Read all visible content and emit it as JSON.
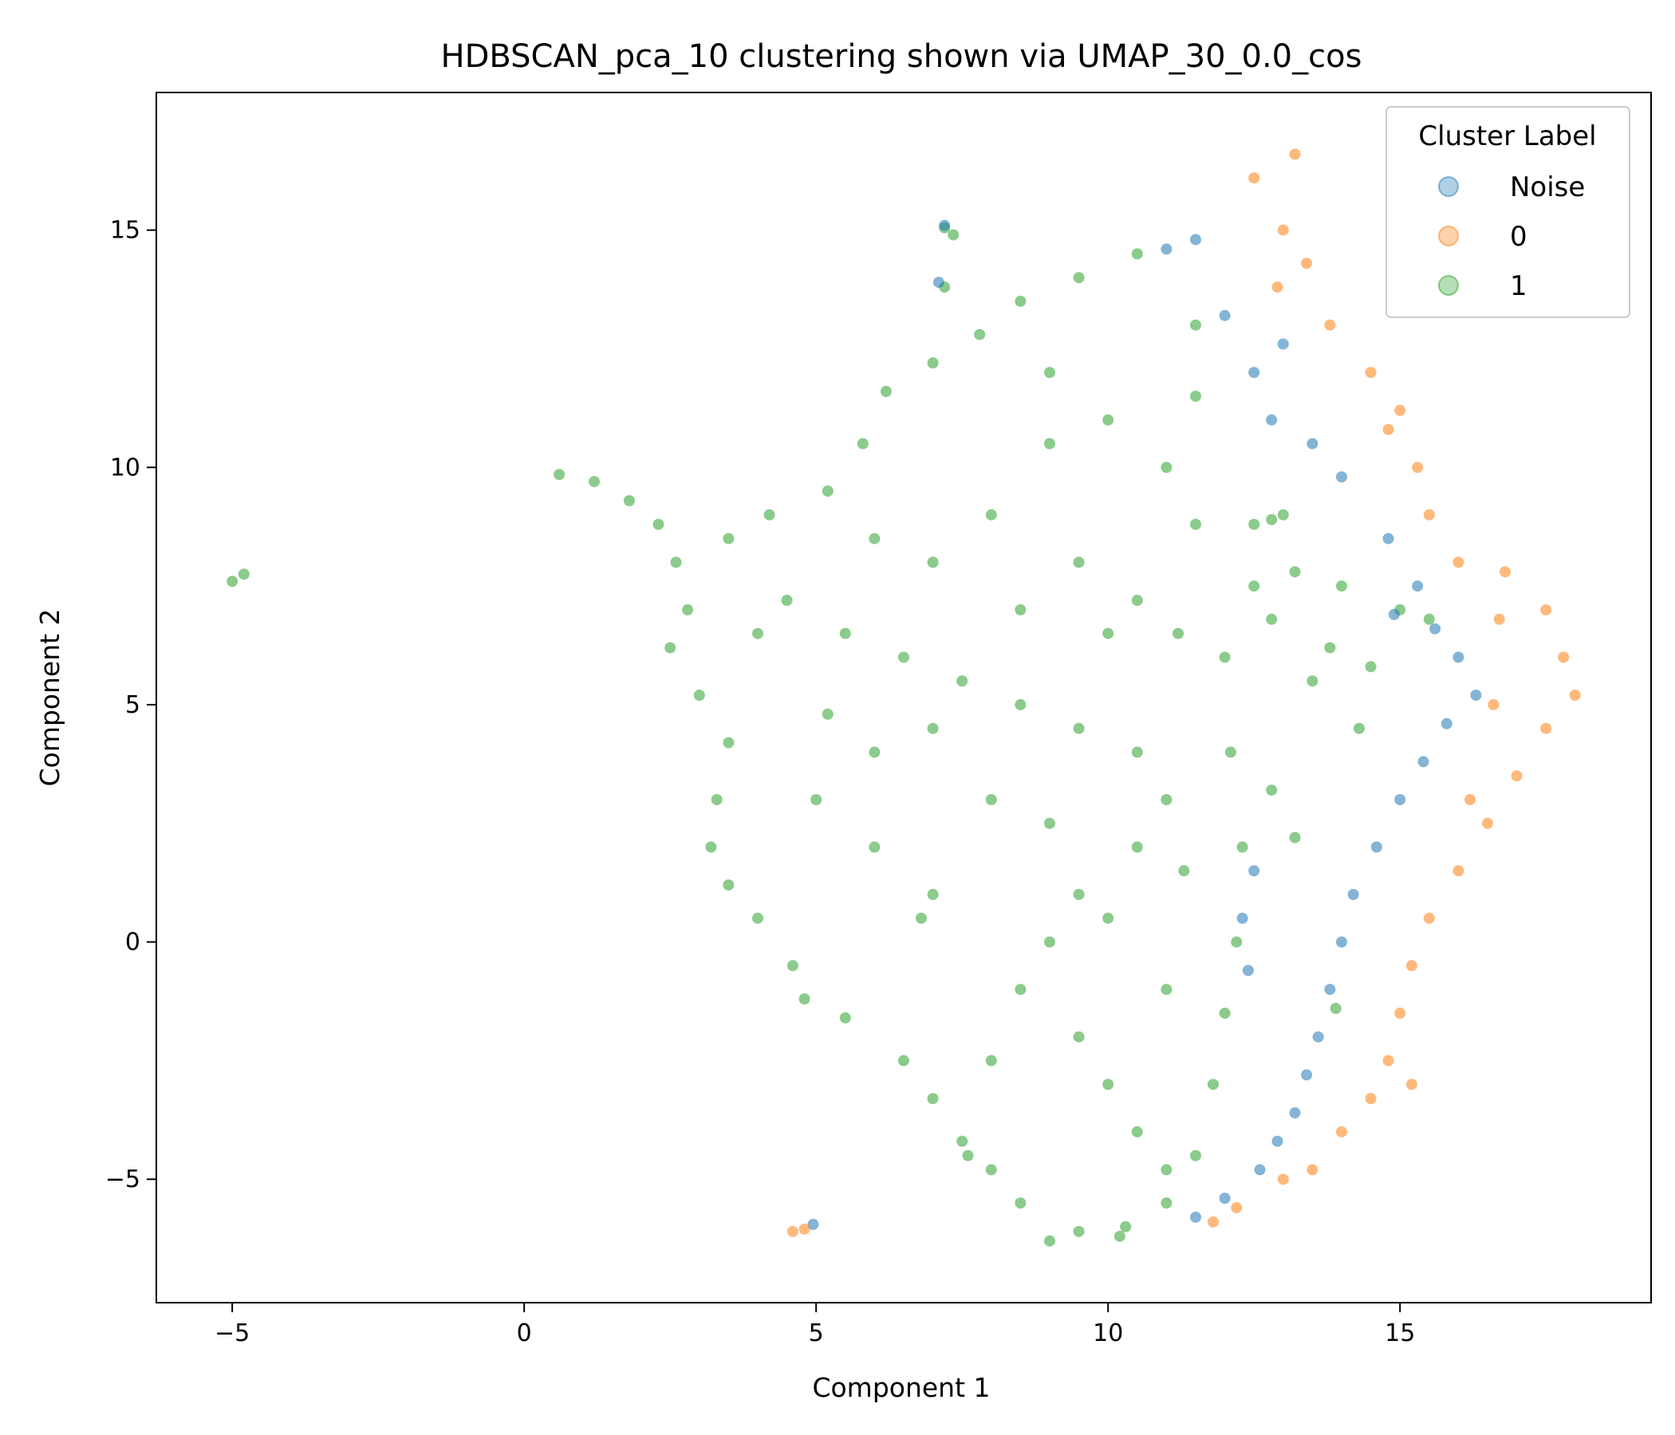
{
  "chart_data": {
    "type": "scatter",
    "title": "HDBSCAN_pca_10 clustering shown via UMAP_30_0.0_cos",
    "xlabel": "Component 1",
    "ylabel": "Component 2",
    "xlim": [
      -6.3,
      19.3
    ],
    "ylim": [
      -7.6,
      17.9
    ],
    "xticks": [
      -5,
      0,
      5,
      10,
      15
    ],
    "yticks": [
      -5,
      0,
      5,
      10,
      15
    ],
    "xtick_labels": [
      "−5",
      "0",
      "5",
      "10",
      "15"
    ],
    "ytick_labels": [
      "−5",
      "0",
      "5",
      "10",
      "15"
    ],
    "grid": false,
    "legend": {
      "title": "Cluster Label",
      "placement": "top-right"
    },
    "series": [
      {
        "name": "Noise",
        "color": "#1f77b4",
        "points": [
          [
            11.5,
            14.8
          ],
          [
            12.0,
            13.2
          ],
          [
            12.5,
            12.0
          ],
          [
            12.8,
            11.0
          ],
          [
            13.5,
            10.5
          ],
          [
            14.0,
            9.8
          ],
          [
            14.8,
            8.5
          ],
          [
            15.3,
            7.5
          ],
          [
            15.6,
            6.6
          ],
          [
            16.0,
            6.0
          ],
          [
            16.3,
            5.2
          ],
          [
            15.8,
            4.6
          ],
          [
            15.4,
            3.8
          ],
          [
            15.0,
            3.0
          ],
          [
            14.6,
            2.0
          ],
          [
            14.2,
            1.0
          ],
          [
            14.0,
            0.0
          ],
          [
            13.8,
            -1.0
          ],
          [
            13.6,
            -2.0
          ],
          [
            13.4,
            -2.8
          ],
          [
            13.2,
            -3.6
          ],
          [
            12.9,
            -4.2
          ],
          [
            12.6,
            -4.8
          ],
          [
            12.0,
            -5.4
          ],
          [
            11.5,
            -5.8
          ],
          [
            12.5,
            1.5
          ],
          [
            12.3,
            0.5
          ],
          [
            12.4,
            -0.6
          ],
          [
            4.95,
            -5.95
          ],
          [
            7.1,
            13.9
          ],
          [
            7.2,
            15.1
          ],
          [
            11.0,
            14.6
          ],
          [
            13.0,
            12.6
          ],
          [
            14.9,
            6.9
          ]
        ]
      },
      {
        "name": "0",
        "color": "#ff7f0e",
        "points": [
          [
            13.2,
            16.6
          ],
          [
            12.5,
            16.1
          ],
          [
            13.0,
            15.0
          ],
          [
            13.4,
            14.3
          ],
          [
            13.8,
            13.0
          ],
          [
            14.5,
            12.0
          ],
          [
            15.0,
            11.2
          ],
          [
            15.3,
            10.0
          ],
          [
            15.5,
            9.0
          ],
          [
            16.0,
            8.0
          ],
          [
            16.8,
            7.8
          ],
          [
            17.5,
            7.0
          ],
          [
            17.8,
            6.0
          ],
          [
            18.0,
            5.2
          ],
          [
            17.5,
            4.5
          ],
          [
            17.0,
            3.5
          ],
          [
            16.5,
            2.5
          ],
          [
            16.0,
            1.5
          ],
          [
            15.5,
            0.5
          ],
          [
            15.2,
            -0.5
          ],
          [
            15.0,
            -1.5
          ],
          [
            14.8,
            -2.5
          ],
          [
            14.5,
            -3.3
          ],
          [
            14.0,
            -4.0
          ],
          [
            13.5,
            -4.8
          ],
          [
            13.0,
            -5.0
          ],
          [
            12.2,
            -5.6
          ],
          [
            11.8,
            -5.9
          ],
          [
            4.6,
            -6.1
          ],
          [
            4.8,
            -6.05
          ],
          [
            16.6,
            5.0
          ],
          [
            16.2,
            3.0
          ],
          [
            16.7,
            6.8
          ],
          [
            12.9,
            13.8
          ],
          [
            14.8,
            10.8
          ],
          [
            15.2,
            -3.0
          ]
        ]
      },
      {
        "name": "1",
        "color": "#2ca02c",
        "points": [
          [
            0.6,
            9.85
          ],
          [
            1.2,
            9.7
          ],
          [
            1.8,
            9.3
          ],
          [
            2.3,
            8.8
          ],
          [
            2.6,
            8.0
          ],
          [
            2.8,
            7.0
          ],
          [
            2.5,
            6.2
          ],
          [
            3.0,
            5.2
          ],
          [
            3.5,
            4.2
          ],
          [
            3.3,
            3.0
          ],
          [
            3.2,
            2.0
          ],
          [
            3.5,
            1.2
          ],
          [
            4.0,
            0.5
          ],
          [
            4.6,
            -0.5
          ],
          [
            4.8,
            -1.2
          ],
          [
            5.5,
            -1.6
          ],
          [
            6.5,
            -2.5
          ],
          [
            7.0,
            -3.3
          ],
          [
            7.5,
            -4.2
          ],
          [
            8.0,
            -4.8
          ],
          [
            8.5,
            -5.5
          ],
          [
            9.0,
            -6.3
          ],
          [
            9.5,
            -6.1
          ],
          [
            10.3,
            -6.0
          ],
          [
            11.0,
            -5.5
          ],
          [
            11.5,
            -4.5
          ],
          [
            11.8,
            -3.0
          ],
          [
            12.0,
            -1.5
          ],
          [
            12.2,
            0.0
          ],
          [
            12.3,
            2.0
          ],
          [
            12.1,
            4.0
          ],
          [
            12.0,
            6.0
          ],
          [
            12.5,
            7.5
          ],
          [
            13.2,
            7.8
          ],
          [
            14.0,
            7.5
          ],
          [
            15.0,
            7.0
          ],
          [
            15.5,
            6.8
          ],
          [
            13.5,
            5.5
          ],
          [
            14.3,
            4.5
          ],
          [
            12.5,
            8.8
          ],
          [
            13.0,
            9.0
          ],
          [
            10.5,
            14.5
          ],
          [
            9.5,
            14.0
          ],
          [
            8.5,
            13.5
          ],
          [
            7.8,
            12.8
          ],
          [
            7.0,
            12.2
          ],
          [
            6.2,
            11.6
          ],
          [
            5.8,
            10.5
          ],
          [
            5.2,
            9.5
          ],
          [
            4.2,
            9.0
          ],
          [
            3.5,
            8.5
          ],
          [
            4.5,
            7.2
          ],
          [
            5.5,
            6.5
          ],
          [
            6.5,
            6.0
          ],
          [
            7.5,
            5.5
          ],
          [
            8.5,
            5.0
          ],
          [
            9.5,
            4.5
          ],
          [
            10.5,
            4.0
          ],
          [
            11.0,
            3.0
          ],
          [
            10.5,
            2.0
          ],
          [
            9.5,
            1.0
          ],
          [
            9.0,
            0.0
          ],
          [
            8.5,
            -1.0
          ],
          [
            9.5,
            -2.0
          ],
          [
            10.0,
            -3.0
          ],
          [
            10.5,
            -4.0
          ],
          [
            11.0,
            -4.8
          ],
          [
            9.0,
            12.0
          ],
          [
            10.0,
            11.0
          ],
          [
            11.0,
            10.0
          ],
          [
            11.5,
            11.5
          ],
          [
            11.5,
            13.0
          ],
          [
            9.0,
            10.5
          ],
          [
            8.0,
            9.0
          ],
          [
            7.0,
            8.0
          ],
          [
            9.5,
            8.0
          ],
          [
            10.5,
            7.2
          ],
          [
            11.2,
            6.5
          ],
          [
            6.0,
            4.0
          ],
          [
            5.0,
            3.0
          ],
          [
            6.0,
            2.0
          ],
          [
            7.0,
            1.0
          ],
          [
            8.0,
            3.0
          ],
          [
            7.0,
            4.5
          ],
          [
            10.0,
            6.5
          ],
          [
            8.5,
            7.0
          ],
          [
            6.0,
            8.5
          ],
          [
            11.5,
            8.8
          ],
          [
            10.2,
            -6.2
          ],
          [
            -5.0,
            7.6
          ],
          [
            -4.8,
            7.75
          ],
          [
            7.2,
            15.05
          ],
          [
            7.35,
            14.9
          ],
          [
            7.2,
            13.8
          ],
          [
            12.8,
            8.9
          ],
          [
            13.9,
            -1.4
          ],
          [
            7.6,
            -4.5
          ],
          [
            9.0,
            2.5
          ],
          [
            10.0,
            0.5
          ],
          [
            11.0,
            -1.0
          ],
          [
            11.3,
            1.5
          ],
          [
            8.0,
            -2.5
          ],
          [
            6.8,
            0.5
          ],
          [
            5.2,
            4.8
          ],
          [
            4.0,
            6.5
          ],
          [
            12.8,
            6.8
          ],
          [
            13.8,
            6.2
          ],
          [
            14.5,
            5.8
          ],
          [
            12.8,
            3.2
          ],
          [
            13.2,
            2.2
          ]
        ]
      }
    ]
  }
}
